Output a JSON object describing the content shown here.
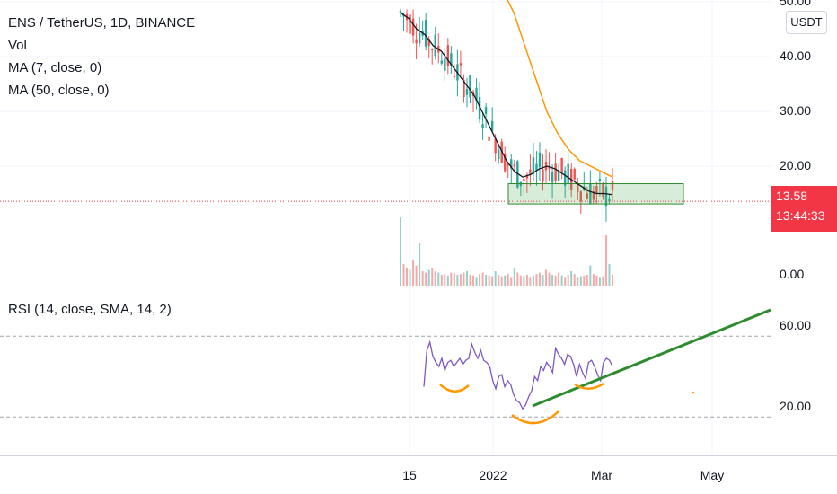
{
  "legend": {
    "symbol": "ENS / TetherUS, 1D, BINANCE",
    "vol": "Vol",
    "ma7": "MA (7, close, 0)",
    "ma50": "MA (50, close, 0)",
    "rsi": "RSI (14, close, SMA, 14, 2)"
  },
  "unit_badge": "USDT",
  "price_tag": {
    "last": "13.58",
    "countdown": "13:44:33"
  },
  "colors": {
    "up": "#26a69a",
    "down": "#ef5350",
    "ma7": "#131722",
    "ma50": "#ff9800",
    "rsi": "#7e57c2",
    "trendline": "#2e8b2e",
    "zone": "#2e8b2e",
    "pattern": "#ff9800",
    "last_price": "#f23645"
  },
  "chart_data": [
    {
      "type": "candlestick",
      "title": "ENS / TetherUS, 1D, BINANCE",
      "y_ticks": [
        "50.00",
        "40.00",
        "30.00",
        "20.00"
      ],
      "ylim": [
        10,
        52
      ],
      "last_price": 13.58,
      "x_ticks": [
        "15",
        "2022",
        "Mar",
        "May"
      ],
      "series": [
        {
          "name": "MA (7, close, 0)",
          "values": [
            48,
            47,
            45,
            44,
            42,
            41,
            39,
            37,
            35,
            33,
            30,
            27,
            24,
            21,
            19,
            18,
            18.5,
            19.5,
            20,
            19.5,
            18.5,
            17.5,
            16.5,
            15.5,
            15,
            15,
            14.8
          ]
        },
        {
          "name": "MA (50, close, 0)",
          "values": [
            52,
            50,
            48,
            45,
            42,
            39,
            36,
            33,
            30,
            28,
            26,
            24.5,
            23,
            22,
            21,
            20.5,
            20,
            19.5,
            19,
            18.5,
            18
          ]
        }
      ],
      "annotations": [
        {
          "type": "zone",
          "from": 13.1,
          "to": 16.8
        }
      ]
    },
    {
      "type": "bar",
      "title": "Vol",
      "y_ticks": [
        "0.00"
      ],
      "values": [
        95,
        30,
        25,
        22,
        35,
        28,
        60,
        20,
        18,
        22,
        25,
        20,
        18,
        15,
        16,
        14,
        18,
        17,
        15,
        16,
        18,
        20,
        15,
        14,
        12,
        16,
        18,
        15,
        14,
        13,
        20,
        15,
        13,
        14,
        16,
        12,
        25,
        18,
        14,
        13,
        15,
        12,
        14,
        16,
        18,
        15,
        22,
        18,
        15,
        14,
        18,
        14,
        12,
        15,
        20,
        16,
        12,
        13,
        14,
        15,
        28,
        16,
        14,
        12,
        13,
        70,
        30,
        15
      ]
    },
    {
      "type": "line",
      "title": "RSI (14, close, SMA, 14, 2)",
      "y_ticks": [
        "60.00",
        "20.00"
      ],
      "ylim": [
        0,
        80
      ],
      "levels": [
        55,
        15
      ],
      "values": [
        30,
        48,
        52,
        45,
        42,
        40,
        44,
        38,
        42,
        43,
        40,
        42,
        44,
        41,
        43,
        44,
        51,
        47,
        44,
        48,
        43,
        42,
        40,
        33,
        29,
        35,
        36,
        30,
        33,
        31,
        26,
        23,
        22,
        19,
        21,
        25,
        28,
        35,
        33,
        40,
        38,
        42,
        40,
        37,
        49,
        46,
        44,
        41,
        46,
        45,
        41,
        35,
        41,
        37,
        34,
        42,
        43,
        40,
        36,
        33,
        42,
        44,
        43,
        40
      ]
    }
  ]
}
